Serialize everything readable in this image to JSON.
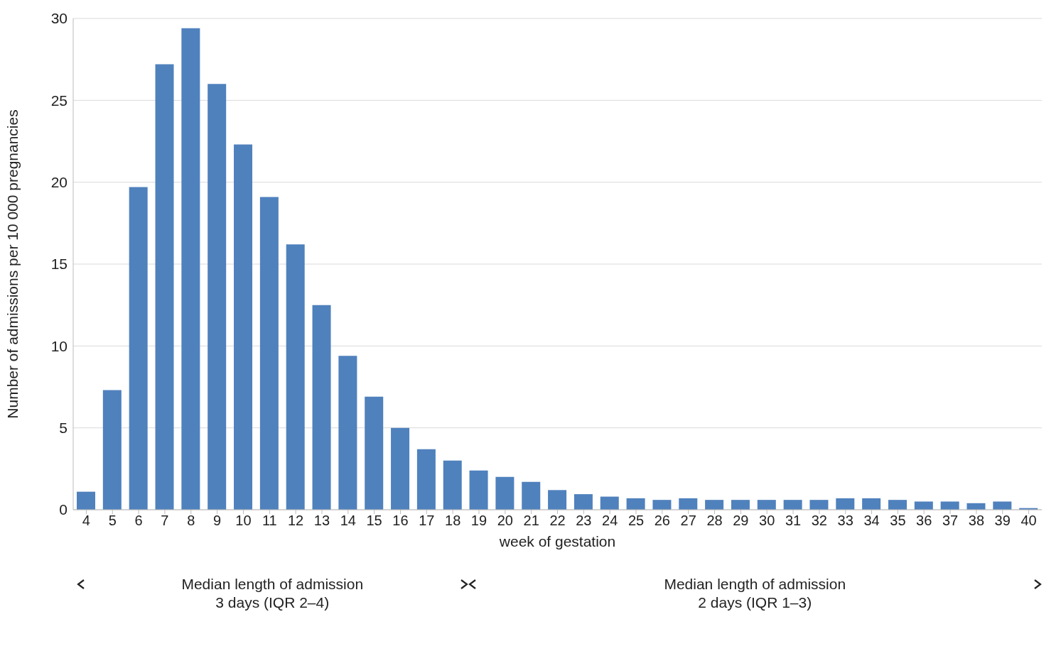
{
  "chart_data": {
    "type": "bar",
    "xlabel": "week of gestation",
    "ylabel": "Number of admissions per 10 000 pregnancies",
    "categories": [
      "4",
      "5",
      "6",
      "7",
      "8",
      "9",
      "10",
      "11",
      "12",
      "13",
      "14",
      "15",
      "16",
      "17",
      "18",
      "19",
      "20",
      "21",
      "22",
      "23",
      "24",
      "25",
      "26",
      "27",
      "28",
      "29",
      "30",
      "31",
      "32",
      "33",
      "34",
      "35",
      "36",
      "37",
      "38",
      "39",
      "40"
    ],
    "values": [
      1.1,
      7.3,
      19.7,
      27.2,
      29.4,
      26.0,
      22.3,
      19.1,
      16.2,
      12.5,
      9.4,
      6.9,
      5.0,
      3.7,
      3.0,
      2.4,
      2.0,
      1.7,
      1.2,
      0.95,
      0.8,
      0.7,
      0.6,
      0.7,
      0.6,
      0.6,
      0.6,
      0.6,
      0.6,
      0.7,
      0.7,
      0.6,
      0.5,
      0.5,
      0.4,
      0.5,
      0.1
    ],
    "color": "#4f81bd",
    "ylim": [
      0,
      30
    ],
    "yticks": [
      0,
      5,
      10,
      15,
      20,
      25,
      30
    ],
    "grid": "y",
    "annotations": [
      "Median length of admission\n3 days (IQR 2–4)",
      "Median length of admission\n2 days (IQR 1–3)"
    ]
  }
}
